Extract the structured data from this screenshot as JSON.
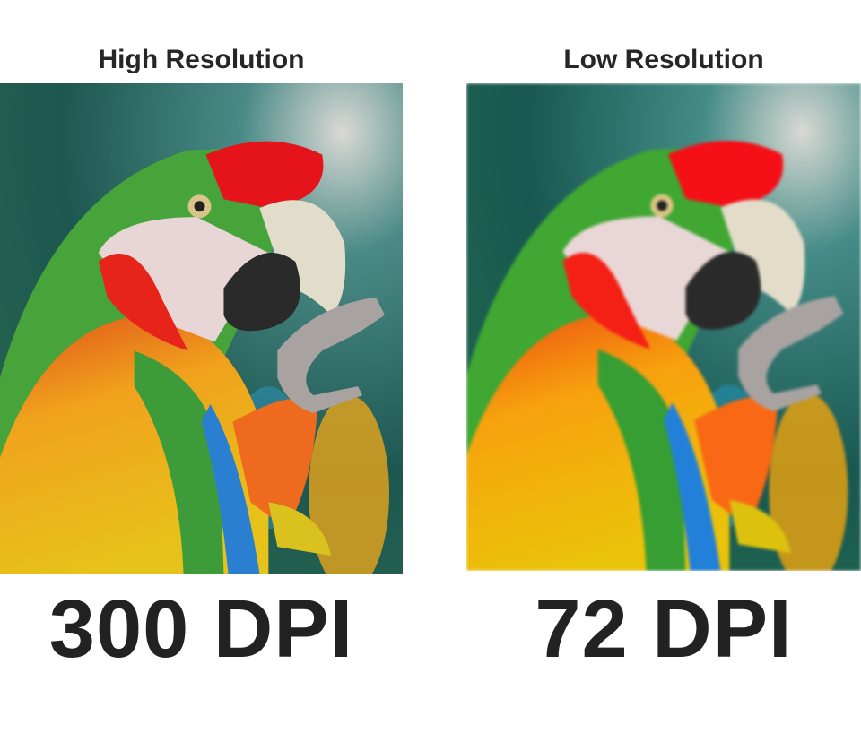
{
  "left": {
    "title": "High Resolution",
    "label": "300 DPI"
  },
  "right": {
    "title": "Low Resolution",
    "label": "72 DPI"
  },
  "colors": {
    "text": "#222222",
    "background_teal": "#1f5a52",
    "plumage_red": "#e5141b",
    "plumage_green": "#3fa43a",
    "plumage_yellow": "#f2c21a",
    "wing_blue": "#2a7fd0"
  }
}
